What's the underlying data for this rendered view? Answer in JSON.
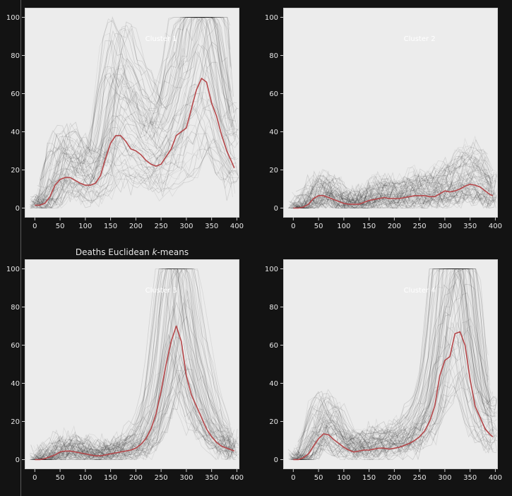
{
  "figure": {
    "background": "#131313",
    "plot_background": "#ececec",
    "frame_color": "#cfcfcf",
    "text_color": "#e6e6e6",
    "trace_color": "#000000",
    "mean_color": "#b5474a"
  },
  "chart_data": [
    {
      "type": "line",
      "title": "",
      "annotation": "Cluster 1",
      "xlabel": "",
      "ylabel": "",
      "xlim": [
        -20,
        405
      ],
      "ylim": [
        -5,
        105
      ],
      "xticks": [
        0,
        50,
        100,
        150,
        200,
        250,
        300,
        350,
        400
      ],
      "yticks": [
        0,
        20,
        40,
        60,
        80,
        100
      ],
      "grid": false,
      "series": [
        {
          "x": [
            0,
            10,
            20,
            30,
            40,
            50,
            60,
            70,
            80,
            90,
            100,
            110,
            120,
            130,
            140,
            150,
            160,
            170,
            180,
            190,
            200,
            210,
            220,
            230,
            240,
            250,
            260,
            270,
            280,
            290,
            300,
            310,
            320,
            330,
            340,
            350,
            360,
            370,
            380,
            390,
            395
          ],
          "y": [
            1.5,
            1.5,
            2.5,
            6,
            12,
            15,
            16,
            16,
            14.5,
            13,
            12,
            12,
            13,
            17,
            26,
            34,
            38,
            38,
            35,
            31,
            30,
            28,
            25,
            23,
            22,
            23,
            27,
            31,
            38,
            40,
            42,
            52,
            62,
            68,
            66,
            55,
            48,
            38,
            30,
            24,
            21
          ]
        }
      ]
    },
    {
      "type": "line",
      "title": "",
      "annotation": "Cluster 2",
      "xlabel": "",
      "ylabel": "",
      "xlim": [
        -20,
        405
      ],
      "ylim": [
        -5,
        105
      ],
      "xticks": [
        0,
        50,
        100,
        150,
        200,
        250,
        300,
        350,
        400
      ],
      "yticks": [
        0,
        20,
        40,
        60,
        80,
        100
      ],
      "grid": false,
      "series": [
        {
          "x": [
            0,
            10,
            20,
            30,
            40,
            50,
            60,
            70,
            80,
            90,
            100,
            110,
            120,
            130,
            140,
            150,
            160,
            170,
            180,
            190,
            200,
            210,
            220,
            230,
            240,
            250,
            260,
            270,
            280,
            290,
            300,
            310,
            320,
            330,
            340,
            350,
            360,
            370,
            380,
            390,
            395
          ],
          "y": [
            0,
            0,
            0.5,
            2,
            5,
            6.5,
            6.5,
            5.5,
            4.5,
            3.5,
            2.5,
            2,
            2,
            2,
            3,
            4,
            4.5,
            5,
            5.5,
            5,
            5,
            5,
            5.5,
            6,
            6.5,
            6.5,
            6.5,
            6,
            6,
            7.5,
            9,
            8.5,
            9,
            10,
            11.5,
            12.5,
            12,
            11,
            9,
            7,
            6.5
          ]
        }
      ]
    },
    {
      "type": "line",
      "title": "Deaths Euclidean k-means",
      "annotation": "Cluster 3",
      "xlabel": "",
      "ylabel": "",
      "xlim": [
        -20,
        405
      ],
      "ylim": [
        -5,
        105
      ],
      "xticks": [
        0,
        50,
        100,
        150,
        200,
        250,
        300,
        350,
        400
      ],
      "yticks": [
        0,
        20,
        40,
        60,
        80,
        100
      ],
      "grid": false,
      "series": [
        {
          "x": [
            0,
            10,
            20,
            30,
            40,
            50,
            60,
            70,
            80,
            90,
            100,
            110,
            120,
            130,
            140,
            150,
            160,
            170,
            180,
            190,
            200,
            210,
            220,
            230,
            240,
            250,
            260,
            270,
            280,
            290,
            300,
            310,
            320,
            330,
            340,
            350,
            360,
            370,
            380,
            390,
            395
          ],
          "y": [
            0,
            0,
            0.5,
            1.5,
            2.5,
            4,
            4.5,
            4.5,
            4,
            3.5,
            3,
            2.5,
            2,
            2,
            2.5,
            3,
            3.5,
            4,
            4.5,
            5,
            6,
            8,
            11,
            16,
            24,
            36,
            50,
            62,
            70,
            62,
            44,
            34,
            28,
            22,
            16,
            12,
            9,
            7,
            6,
            5,
            4.5
          ]
        }
      ]
    },
    {
      "type": "line",
      "title": "",
      "annotation": "Cluster 4",
      "xlabel": "",
      "ylabel": "",
      "xlim": [
        -20,
        405
      ],
      "ylim": [
        -5,
        105
      ],
      "xticks": [
        0,
        50,
        100,
        150,
        200,
        250,
        300,
        350,
        400
      ],
      "yticks": [
        0,
        20,
        40,
        60,
        80,
        100
      ],
      "grid": false,
      "series": [
        {
          "x": [
            0,
            10,
            20,
            30,
            40,
            50,
            60,
            70,
            80,
            90,
            100,
            110,
            120,
            130,
            140,
            150,
            160,
            170,
            180,
            190,
            200,
            210,
            220,
            230,
            240,
            250,
            260,
            270,
            280,
            290,
            300,
            310,
            320,
            330,
            340,
            350,
            360,
            370,
            380,
            390,
            395
          ],
          "y": [
            0,
            0,
            1,
            3,
            7,
            11,
            13.5,
            13,
            10.5,
            8.5,
            6.5,
            5,
            4,
            4.5,
            5,
            5,
            5.5,
            6,
            6,
            5.5,
            6,
            6.5,
            7.5,
            8.5,
            10,
            12,
            15,
            20,
            28,
            44,
            52,
            54,
            66,
            67,
            60,
            42,
            28,
            22,
            16,
            13,
            12
          ]
        }
      ]
    }
  ]
}
